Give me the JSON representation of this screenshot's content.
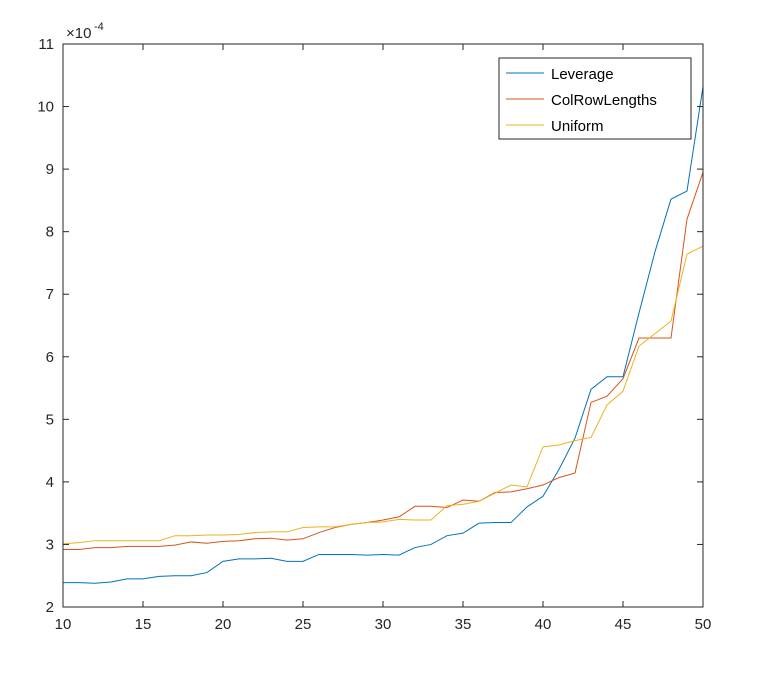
{
  "chart_data": {
    "type": "line",
    "title": "",
    "xlabel": "",
    "ylabel": "",
    "xlim": [
      10,
      50
    ],
    "ylim": [
      2,
      11
    ],
    "y_exponent_label": "×10",
    "y_exponent_power": "-4",
    "x_ticks": [
      10,
      15,
      20,
      25,
      30,
      35,
      40,
      45,
      50
    ],
    "y_ticks": [
      2,
      3,
      4,
      5,
      6,
      7,
      8,
      9,
      10,
      11
    ],
    "grid": false,
    "legend_position": "top-right",
    "x": [
      10,
      11,
      12,
      13,
      14,
      15,
      16,
      17,
      18,
      19,
      20,
      21,
      22,
      23,
      24,
      25,
      26,
      27,
      28,
      29,
      30,
      31,
      32,
      33,
      34,
      35,
      36,
      37,
      38,
      39,
      40,
      41,
      42,
      43,
      44,
      45,
      46,
      47,
      48,
      49,
      50
    ],
    "series": [
      {
        "name": "Leverage",
        "color": "#0072BD",
        "values": [
          2.39,
          2.39,
          2.38,
          2.4,
          2.45,
          2.45,
          2.49,
          2.5,
          2.5,
          2.55,
          2.73,
          2.77,
          2.77,
          2.78,
          2.73,
          2.73,
          2.84,
          2.84,
          2.84,
          2.83,
          2.84,
          2.83,
          2.95,
          3.0,
          3.14,
          3.18,
          3.34,
          3.35,
          3.35,
          3.6,
          3.77,
          4.2,
          4.7,
          5.48,
          5.68,
          5.68,
          6.7,
          7.68,
          8.52,
          8.65,
          10.32
        ]
      },
      {
        "name": "ColRowLengths",
        "color": "#D95319",
        "values": [
          2.92,
          2.92,
          2.95,
          2.95,
          2.97,
          2.97,
          2.97,
          2.99,
          3.04,
          3.02,
          3.05,
          3.06,
          3.09,
          3.1,
          3.07,
          3.09,
          3.19,
          3.27,
          3.32,
          3.35,
          3.39,
          3.44,
          3.61,
          3.61,
          3.59,
          3.71,
          3.69,
          3.83,
          3.84,
          3.89,
          3.95,
          4.07,
          4.14,
          5.27,
          5.37,
          5.65,
          6.3,
          6.3,
          6.3,
          8.2,
          8.95
        ]
      },
      {
        "name": "Uniform",
        "color": "#EDB120",
        "values": [
          3.01,
          3.03,
          3.06,
          3.06,
          3.06,
          3.06,
          3.06,
          3.14,
          3.14,
          3.15,
          3.15,
          3.16,
          3.19,
          3.2,
          3.2,
          3.27,
          3.28,
          3.28,
          3.32,
          3.35,
          3.36,
          3.4,
          3.39,
          3.39,
          3.62,
          3.64,
          3.69,
          3.82,
          3.95,
          3.92,
          4.56,
          4.59,
          4.66,
          4.71,
          5.23,
          5.45,
          6.17,
          6.37,
          6.57,
          7.64,
          7.77
        ]
      }
    ]
  }
}
